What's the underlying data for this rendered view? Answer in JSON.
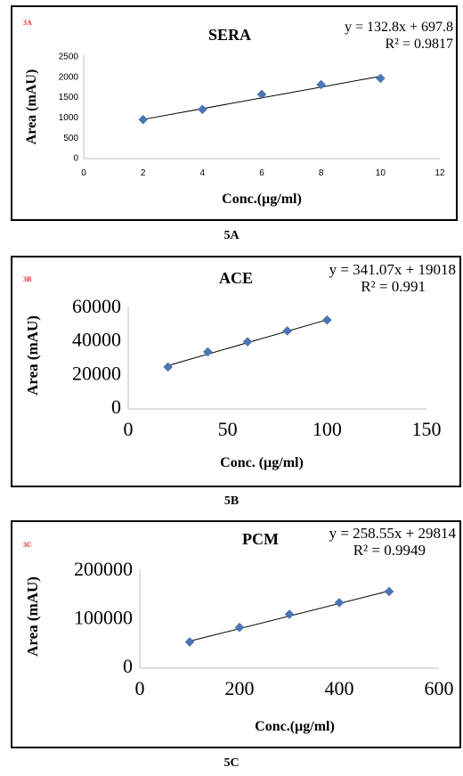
{
  "charts": [
    {
      "tag": "3A",
      "caption": "5A",
      "chart_data": {
        "type": "scatter",
        "title": "SERA",
        "xlabel": "Conc.(µg/ml)",
        "ylabel": "Area (mAU)",
        "xlim": [
          0,
          12
        ],
        "ylim": [
          0,
          2500
        ],
        "xticks": [
          0,
          2,
          4,
          6,
          8,
          10,
          12
        ],
        "yticks": [
          0,
          500,
          1000,
          1500,
          2000,
          2500
        ],
        "x": [
          2,
          4,
          6,
          8,
          10
        ],
        "y": [
          960,
          1210,
          1580,
          1820,
          1975
        ],
        "trendline": {
          "slope": 132.8,
          "intercept": 697.8
        },
        "equation": "y = 132.8x + 697.8",
        "r2": "R² = 0.9817",
        "marker_color": "#4a77b4",
        "grid": false
      }
    },
    {
      "tag": "3B",
      "caption": "5B",
      "chart_data": {
        "type": "scatter",
        "title": "ACE",
        "xlabel": "Conc. (µg/ml)",
        "ylabel": "Area (mAU)",
        "xlim": [
          0,
          150
        ],
        "ylim": [
          0,
          60000
        ],
        "xticks": [
          0,
          50,
          100,
          150
        ],
        "yticks": [
          0,
          20000,
          40000,
          60000
        ],
        "x": [
          20,
          40,
          60,
          80,
          100
        ],
        "y": [
          25000,
          34000,
          40000,
          46500,
          53000
        ],
        "trendline": {
          "slope": 341.07,
          "intercept": 19018
        },
        "equation": "y = 341.07x + 19018",
        "r2": "R² = 0.991",
        "marker_color": "#4a77b4",
        "grid": false
      }
    },
    {
      "tag": "3C",
      "caption": "5C",
      "chart_data": {
        "type": "scatter",
        "title": "PCM",
        "xlabel": "Conc.(µg/ml)",
        "ylabel": "Area (mAU)",
        "xlim": [
          0,
          600
        ],
        "ylim": [
          0,
          200000
        ],
        "xticks": [
          0,
          200,
          400,
          600
        ],
        "yticks": [
          0,
          100000,
          200000
        ],
        "x": [
          100,
          200,
          300,
          400,
          500
        ],
        "y": [
          54000,
          84000,
          111000,
          135000,
          158000
        ],
        "trendline": {
          "slope": 258.55,
          "intercept": 29814
        },
        "equation": "y = 258.55x + 29814",
        "r2": "R² = 0.9949",
        "marker_color": "#4a77b4",
        "grid": false
      }
    }
  ]
}
